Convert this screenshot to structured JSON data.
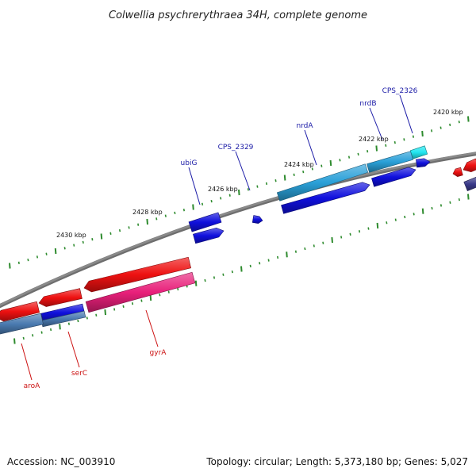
{
  "title": "Colwellia psychrerythraea 34H, complete genome",
  "footer": {
    "accession": "Accession: NC_003910",
    "summary": "Topology: circular; Length: 5,373,180 bp; Genes: 5,027"
  },
  "scale_labels": [
    "2420 kbp",
    "2422 kbp",
    "2424 kbp",
    "2426 kbp",
    "2428 kbp",
    "2430 kbp"
  ],
  "gene_labels": {
    "forward": [
      "CPS_2326",
      "nrdB",
      "nrdA",
      "CPS_2329",
      "ubiG"
    ],
    "reverse": [
      "gyrA",
      "serC",
      "aroA"
    ]
  },
  "colors": {
    "backbone": "#8a8a8a",
    "tick": "#2e8b2e",
    "forward_label": "#1a1aa6",
    "reverse_label": "#cc1111",
    "gene_blue": "#1010dd",
    "gene_lightblue": "#2aa0d8",
    "gene_cyan": "#22e6f0",
    "gene_red": "#ee1111",
    "gene_pink": "#e8207a",
    "gene_steel": "#4a7ab0",
    "gene_navy": "#3a3a8a"
  }
}
